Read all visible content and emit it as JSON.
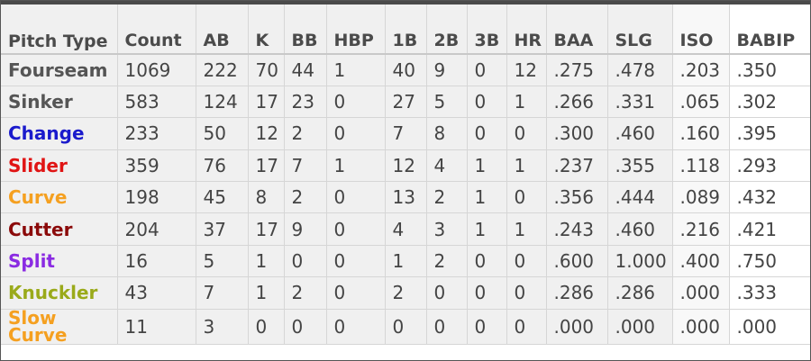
{
  "columns": [
    "Pitch Type",
    "Count",
    "AB",
    "K",
    "BB",
    "HBP",
    "1B",
    "2B",
    "3B",
    "HR",
    "BAA",
    "SLG",
    "ISO",
    "BABIP"
  ],
  "rows": [
    {
      "type": "Fourseam",
      "color": "#555555",
      "values": [
        "1069",
        "222",
        "70",
        "44",
        "1",
        "40",
        "9",
        "0",
        "12",
        ".275",
        ".478",
        ".203",
        ".350"
      ]
    },
    {
      "type": "Sinker",
      "color": "#555555",
      "values": [
        "583",
        "124",
        "17",
        "23",
        "0",
        "27",
        "5",
        "0",
        "1",
        ".266",
        ".331",
        ".065",
        ".302"
      ]
    },
    {
      "type": "Change",
      "color": "#1a1acc",
      "values": [
        "233",
        "50",
        "12",
        "2",
        "0",
        "7",
        "8",
        "0",
        "0",
        ".300",
        ".460",
        ".160",
        ".395"
      ]
    },
    {
      "type": "Slider",
      "color": "#e01414",
      "values": [
        "359",
        "76",
        "17",
        "7",
        "1",
        "12",
        "4",
        "1",
        "1",
        ".237",
        ".355",
        ".118",
        ".293"
      ]
    },
    {
      "type": "Curve",
      "color": "#f5a020",
      "values": [
        "198",
        "45",
        "8",
        "2",
        "0",
        "13",
        "2",
        "1",
        "0",
        ".356",
        ".444",
        ".089",
        ".432"
      ]
    },
    {
      "type": "Cutter",
      "color": "#8b0a0a",
      "values": [
        "204",
        "37",
        "17",
        "9",
        "0",
        "4",
        "3",
        "1",
        "1",
        ".243",
        ".460",
        ".216",
        ".421"
      ]
    },
    {
      "type": "Split",
      "color": "#8a2be2",
      "values": [
        "16",
        "5",
        "1",
        "0",
        "0",
        "1",
        "2",
        "0",
        "0",
        ".600",
        "1.000",
        ".400",
        ".750"
      ]
    },
    {
      "type": "Knuckler",
      "color": "#9aaa1a",
      "values": [
        "43",
        "7",
        "1",
        "2",
        "0",
        "2",
        "0",
        "0",
        "0",
        ".286",
        ".286",
        ".000",
        ".333"
      ]
    },
    {
      "type": "Slow Curve",
      "color": "#f5a020",
      "values": [
        "11",
        "3",
        "0",
        "0",
        "0",
        "0",
        "0",
        "0",
        "0",
        ".000",
        ".000",
        ".000",
        ".000"
      ]
    }
  ]
}
